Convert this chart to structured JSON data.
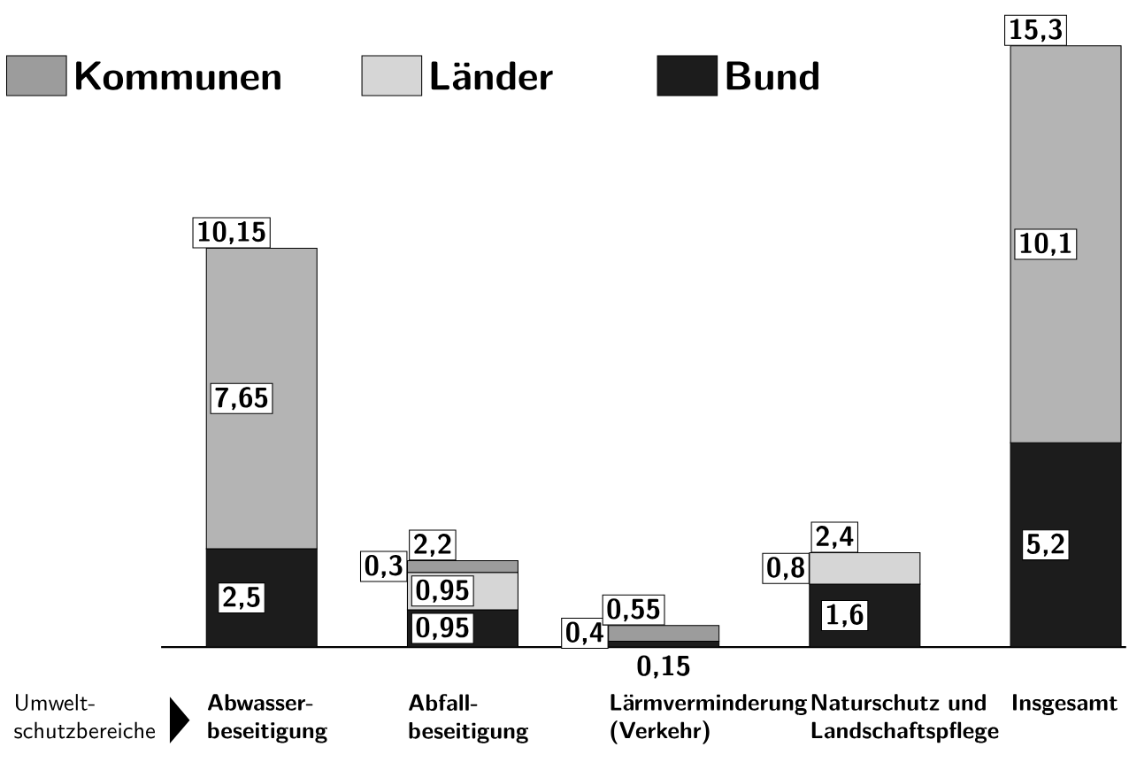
{
  "chart_data": {
    "type": "bar",
    "stacked": true,
    "xlabel": "Umwelt- schutzbereiche",
    "categories": [
      "Abwasser- beseitigung",
      "Abfall- beseitigung",
      "Lärmverminderung (Verkehr)",
      "Naturschutz und Landschaftspflege",
      "Insgesamt"
    ],
    "series": [
      {
        "name": "Bund",
        "color": "#1c1c1c",
        "values": [
          2.5,
          0.95,
          0.15,
          1.6,
          5.2
        ],
        "value_labels": [
          "2,5",
          "0,95",
          "0,15",
          "1,6",
          "5,2"
        ]
      },
      {
        "name": "Länder",
        "color": "#d6d6d6",
        "values": [
          null,
          0.95,
          null,
          0.8,
          null
        ],
        "value_labels": [
          null,
          "0,95",
          null,
          "0,8",
          null
        ]
      },
      {
        "name": "Kommunen",
        "color": "#9c9c9c",
        "values": [
          null,
          0.3,
          0.4,
          null,
          null
        ],
        "value_labels": [
          null,
          "0,3",
          "0,4",
          null,
          null
        ]
      },
      {
        "color": "#b4b4b4",
        "values": [
          7.65,
          null,
          null,
          null,
          10.1
        ],
        "value_labels": [
          "7,65",
          null,
          null,
          null,
          "10,1"
        ]
      }
    ],
    "totals": [
      "10,15",
      "2,2",
      "0,55",
      "2,4",
      "15,3"
    ],
    "legend": "top left"
  }
}
